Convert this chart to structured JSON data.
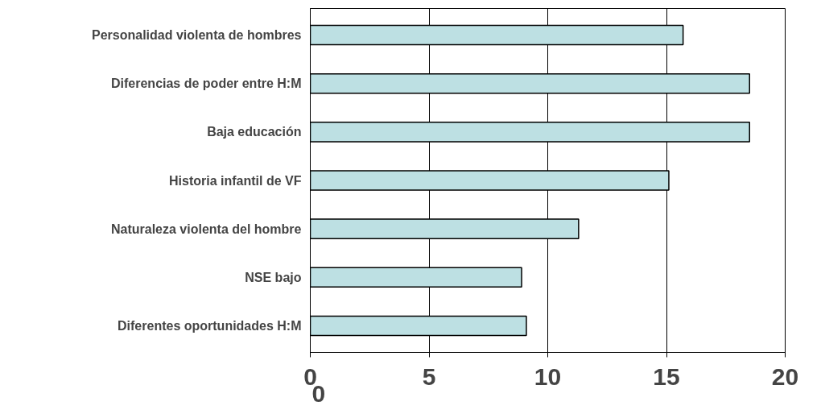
{
  "chart_data": {
    "type": "bar",
    "orientation": "horizontal",
    "categories": [
      "Personalidad violenta de hombres",
      "Diferencias de poder entre H:M",
      "Baja educación",
      "Historia infantil de VF",
      "Naturaleza violenta del hombre",
      "NSE bajo",
      "Diferentes oportunidades H:M"
    ],
    "values": [
      15.7,
      18.5,
      18.5,
      15.1,
      11.3,
      8.9,
      9.1
    ],
    "color": "#bde0e3",
    "xlim": [
      0,
      20
    ],
    "xticks": [
      0,
      5,
      10,
      15,
      20
    ],
    "grid": "x",
    "annotations": [
      "0"
    ]
  }
}
